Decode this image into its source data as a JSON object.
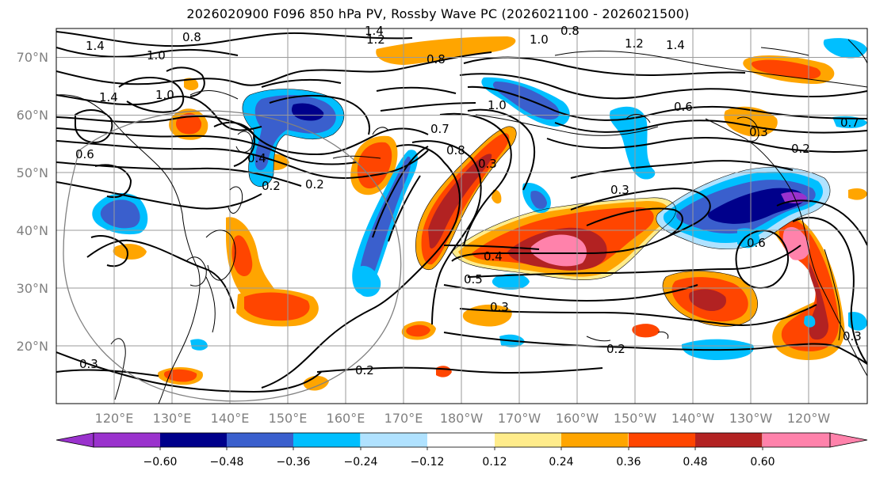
{
  "title": "2026020900 F096 850 hPa PV, Rossby Wave PC (2026021100 - 2026021500)",
  "map": {
    "lat_labels": [
      "70°N",
      "60°N",
      "50°N",
      "40°N",
      "30°N",
      "20°N"
    ],
    "lon_labels": [
      "120°E",
      "130°E",
      "140°E",
      "150°E",
      "160°E",
      "170°E",
      "180°W",
      "170°W",
      "160°W",
      "150°W",
      "140°W",
      "130°W",
      "120°W"
    ],
    "lat_range": [
      10,
      75
    ],
    "lon_range_east": [
      110,
      250
    ],
    "contour_labels": [
      "1.4",
      "1.0",
      "0.8",
      "1.2",
      "1.0",
      "1.4",
      "0.8",
      "1.2",
      "1.4",
      "0.8",
      "0.6",
      "1.0",
      "1.4",
      "1.0",
      "0.6",
      "0.2",
      "0.4",
      "0.3",
      "0.2",
      "0.7",
      "0.8",
      "0.3",
      "0.3",
      "0.4",
      "0.5",
      "0.3",
      "0.2",
      "0.6",
      "0.2",
      "0.3",
      "0.2",
      "0.3",
      "0.7"
    ]
  },
  "colorbar": {
    "ticks": [
      "−0.60",
      "−0.48",
      "−0.36",
      "−0.24",
      "−0.12",
      "0.12",
      "0.24",
      "0.36",
      "0.48",
      "0.60"
    ],
    "bins": [
      {
        "color": "#9a32cd"
      },
      {
        "color": "#00008b"
      },
      {
        "color": "#3a5fcd"
      },
      {
        "color": "#00bfff"
      },
      {
        "color": "#b0e2ff"
      },
      {
        "color": "#ffffff"
      },
      {
        "color": "#ffec8b"
      },
      {
        "color": "#ffa500"
      },
      {
        "color": "#ff4500"
      },
      {
        "color": "#b22222"
      },
      {
        "color": "#ff82ab"
      }
    ]
  }
}
